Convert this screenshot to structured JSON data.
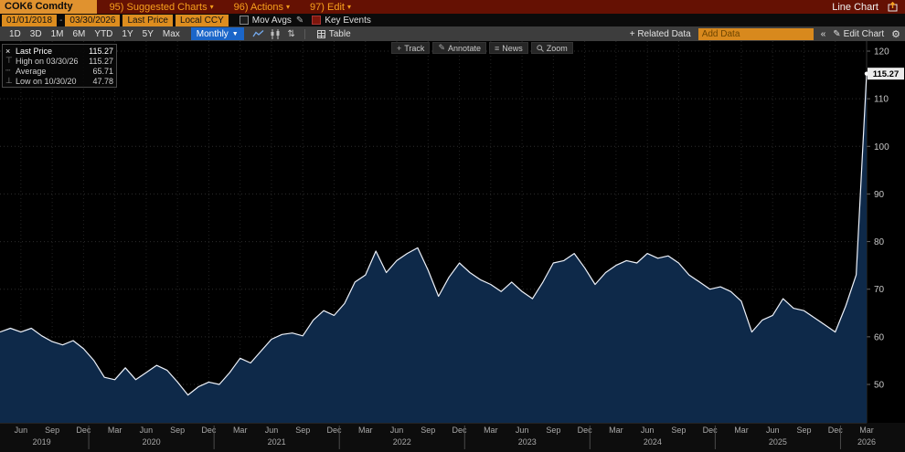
{
  "top_bar": {
    "ticker": "COK6 Comdty",
    "menus": [
      {
        "label": "95) Suggested Charts"
      },
      {
        "label": "96) Actions"
      },
      {
        "label": "97) Edit"
      }
    ],
    "view_label": "Line Chart"
  },
  "settings_bar": {
    "date_from": "01/01/2018",
    "date_to": "03/30/2026",
    "field": "Last Price",
    "currency": "Local CCY",
    "mov_avgs": "Mov Avgs",
    "key_events": "Key Events"
  },
  "toolbar": {
    "periods": [
      "1D",
      "3D",
      "1M",
      "6M",
      "YTD",
      "1Y",
      "5Y",
      "Max"
    ],
    "frequency": "Monthly",
    "table": "Table",
    "related_data": "+ Related Data",
    "add_data_placeholder": "Add Data",
    "edit_chart": "Edit Chart"
  },
  "chart_tools": [
    {
      "icon": "plus-icon",
      "label": "Track"
    },
    {
      "icon": "pencil-icon",
      "label": "Annotate"
    },
    {
      "icon": "list-icon",
      "label": "News"
    },
    {
      "icon": "magnifier-icon",
      "label": "Zoom"
    }
  ],
  "legend": {
    "rows": [
      {
        "marker": "×",
        "label": "Last Price",
        "value": "115.27"
      },
      {
        "marker": "⊤",
        "label": "High on 03/30/26",
        "value": "115.27"
      },
      {
        "marker": "┄",
        "label": "Average",
        "value": "65.71"
      },
      {
        "marker": "⊥",
        "label": "Low on 10/30/20",
        "value": "47.78"
      }
    ]
  },
  "icons": {
    "caret_down_small": "▾",
    "caret_down": "▼",
    "pencil": "✎",
    "list": "≡",
    "gear": "⚙",
    "chevron_left": "«",
    "plus": "+"
  },
  "chart_data": {
    "type": "area",
    "frequency": "monthly",
    "start": "2019-04",
    "end": "2026-03",
    "ylim": [
      42,
      122
    ],
    "yticks": [
      50,
      60,
      70,
      80,
      90,
      100,
      110,
      120
    ],
    "values": [
      61.0,
      61.8,
      61.0,
      61.8,
      60.2,
      59.0,
      58.3,
      59.2,
      57.5,
      55.0,
      51.5,
      51.0,
      53.5,
      51.0,
      52.5,
      54.0,
      53.0,
      50.5,
      47.78,
      49.5,
      50.5,
      50.0,
      52.5,
      55.5,
      54.5,
      57.0,
      59.5,
      60.5,
      60.8,
      60.2,
      63.5,
      65.5,
      64.5,
      67.0,
      71.5,
      73.0,
      78.0,
      73.5,
      76.0,
      77.5,
      78.7,
      74.0,
      68.5,
      72.5,
      75.5,
      73.5,
      72.0,
      71.0,
      69.5,
      71.5,
      69.5,
      68.0,
      71.5,
      75.5,
      76.0,
      77.5,
      74.5,
      71.0,
      73.5,
      75.0,
      76.0,
      75.5,
      77.5,
      76.5,
      77.0,
      75.5,
      73.0,
      71.5,
      70.0,
      70.5,
      69.5,
      67.5,
      61.0,
      63.5,
      64.5,
      68.0,
      66.0,
      65.5,
      64.0,
      62.5,
      61.0,
      66.5,
      73.0,
      115.27
    ],
    "last_point_label": "115.27",
    "line_color": "#eef2fa",
    "fill_color": "#0e2949",
    "x_axis": {
      "month_cycle": [
        "Jun",
        "Sep",
        "Dec",
        "Mar"
      ],
      "first_tick_index": 2,
      "tick_step": 3,
      "years": [
        {
          "label": "2019",
          "center": 4
        },
        {
          "label": "2020",
          "center": 14.5
        },
        {
          "label": "2021",
          "center": 26.5
        },
        {
          "label": "2022",
          "center": 38.5
        },
        {
          "label": "2023",
          "center": 50.5
        },
        {
          "label": "2024",
          "center": 62.5
        },
        {
          "label": "2025",
          "center": 74.5
        },
        {
          "label": "2026",
          "center": 83
        }
      ],
      "year_boundaries": [
        8.5,
        20.5,
        32.5,
        44.5,
        56.5,
        68.5,
        80.5
      ]
    }
  },
  "colors": {
    "amber": "#dd8d1f",
    "top_bar_bg": "#651103",
    "accent_blue": "#1b66c9",
    "chart_bg": "#000000",
    "grid": "#2d2d2d"
  }
}
